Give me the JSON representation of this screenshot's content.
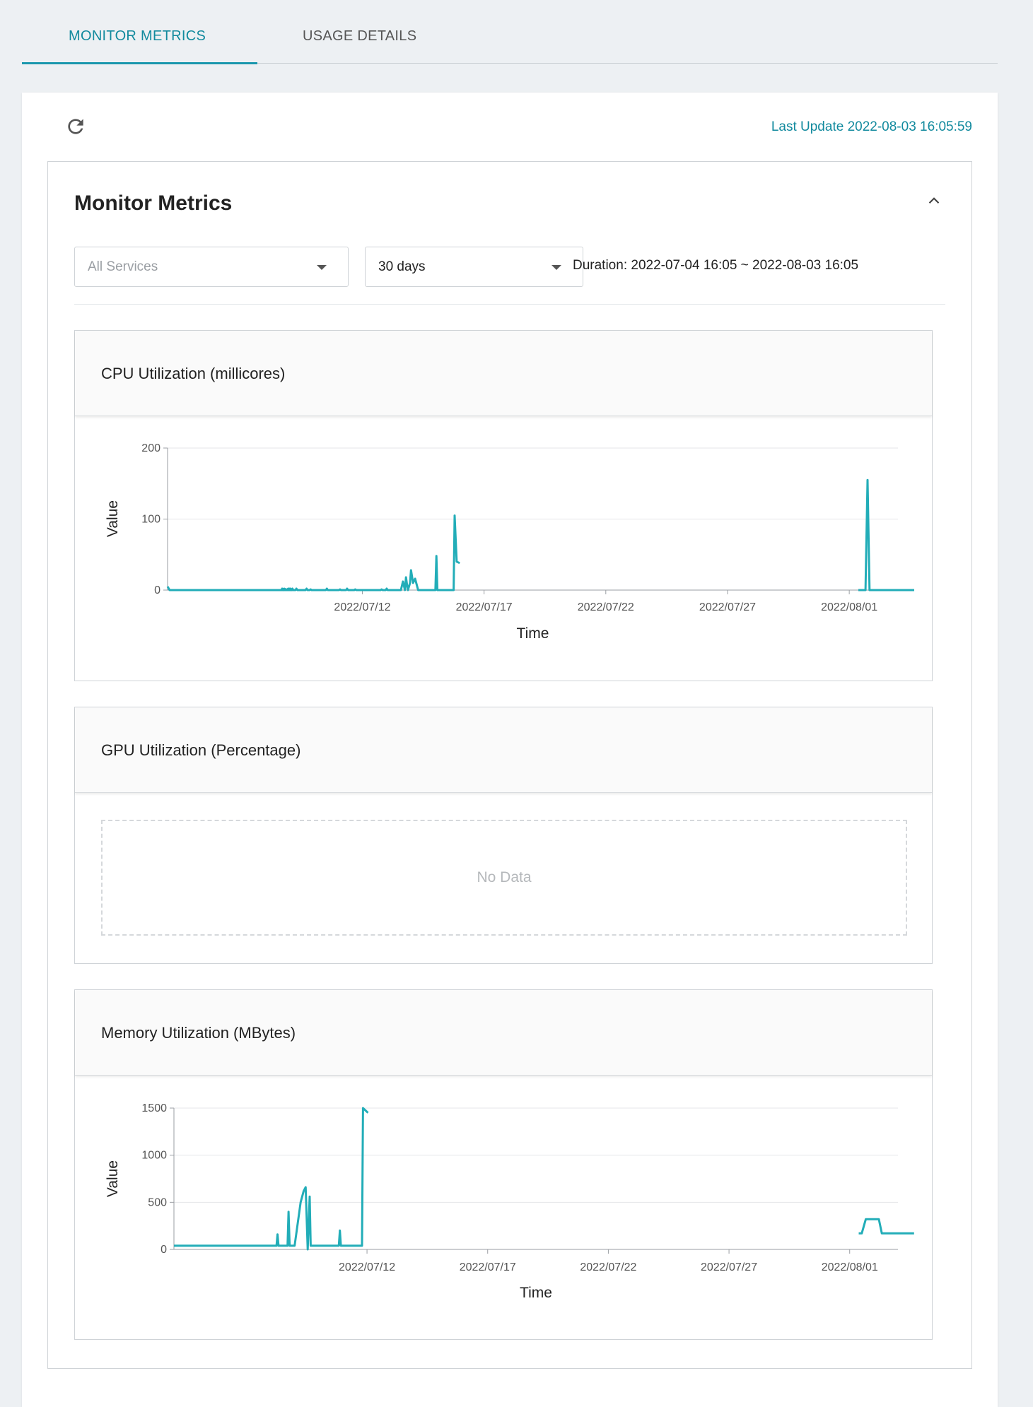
{
  "tabs": [
    {
      "label": "MONITOR METRICS",
      "active": true
    },
    {
      "label": "USAGE DETAILS",
      "active": false
    }
  ],
  "header": {
    "refresh_icon": "refresh-icon",
    "last_update": "Last Update 2022-08-03 16:05:59"
  },
  "panel": {
    "title": "Monitor Metrics",
    "collapse_icon": "chevron-up-icon",
    "service_select": {
      "value": "All Services",
      "placeholder": true
    },
    "range_select": {
      "value": "30 days"
    },
    "duration": "Duration: 2022-07-04 16:05 ~ 2022-08-03 16:05"
  },
  "charts": {
    "cpu": {
      "title": "CPU Utilization (millicores)"
    },
    "gpu": {
      "title": "GPU Utilization (Percentage)",
      "empty_text": "No Data"
    },
    "memory": {
      "title": "Memory Utilization (MBytes)"
    }
  },
  "colors": {
    "accent": "#128a9e",
    "line": "#22adb8"
  },
  "chart_data": [
    {
      "type": "line",
      "id": "cpu",
      "title": "CPU Utilization (millicores)",
      "xlabel": "Time",
      "ylabel": "Value",
      "x_domain": [
        "2022-07-04",
        "2022-08-03"
      ],
      "ylim": [
        0,
        200
      ],
      "y_ticks": [
        0,
        100,
        200
      ],
      "x_ticks": [
        "2022/07/12",
        "2022/07/17",
        "2022/07/22",
        "2022/07/27",
        "2022/08/01"
      ],
      "series": [
        {
          "points": [
            [
              "2022-07-04 00:00",
              5
            ],
            [
              "2022-07-04 02:00",
              0
            ],
            [
              "2022-07-08 16:00",
              0
            ],
            [
              "2022-07-08 18:00",
              1
            ],
            [
              "2022-07-08 20:00",
              0
            ],
            [
              "2022-07-08 22:00",
              0
            ],
            [
              "2022-07-09 00:00",
              2
            ],
            [
              "2022-07-09 02:00",
              0
            ],
            [
              "2022-07-08 22:00",
              0
            ],
            [
              "2022-07-08 23:00",
              2
            ],
            [
              "2022-07-09 00:00",
              0
            ],
            [
              "2022-07-08 19:00",
              0
            ],
            [
              "2022-07-09 01:00",
              1
            ],
            [
              "2022-07-09 03:00",
              0
            ],
            [
              "2022-07-08 21:00",
              0
            ],
            [
              "2022-07-08 23:00",
              2
            ],
            [
              "2022-07-09 01:00",
              0
            ],
            [
              "2022-07-08 16:00",
              0
            ],
            [
              "2022-07-08 17:00",
              2
            ],
            [
              "2022-07-08 18:00",
              0
            ],
            [
              "2022-07-08 18:00",
              0
            ],
            [
              "2022-07-08 19:00",
              1
            ],
            [
              "2022-07-08 20:00",
              0
            ],
            [
              "2022-07-08 16:00",
              0
            ],
            [
              "2022-07-08 19:00",
              2
            ],
            [
              "2022-07-08 22:00",
              0
            ],
            [
              "2022-07-08 16:00",
              0
            ],
            [
              "2022-07-08 20:00",
              1
            ],
            [
              "2022-07-09 00:00",
              0
            ],
            [
              "2022-07-08 23:00",
              0
            ],
            [
              "2022-07-09 00:00",
              1
            ],
            [
              "2022-07-09 01:00",
              0
            ],
            [
              "2022-07-09 00:00",
              0
            ],
            [
              "2022-07-09 01:00",
              2
            ],
            [
              "2022-07-09 02:00",
              0
            ],
            [
              "2022-07-09 02:00",
              0
            ],
            [
              "2022-07-09 03:00",
              2
            ],
            [
              "2022-07-09 04:00",
              0
            ],
            [
              "2022-07-09 06:00",
              0
            ],
            [
              "2022-07-09 07:00",
              2
            ],
            [
              "2022-07-09 08:00",
              0
            ],
            [
              "2022-07-09 16:00",
              0
            ],
            [
              "2022-07-09 17:00",
              2
            ],
            [
              "2022-07-09 18:00",
              0
            ],
            [
              "2022-07-09 20:00",
              0
            ],
            [
              "2022-07-09 21:00",
              1
            ],
            [
              "2022-07-09 22:00",
              0
            ],
            [
              "2022-07-10 12:00",
              0
            ],
            [
              "2022-07-10 13:00",
              2
            ],
            [
              "2022-07-10 14:00",
              0
            ],
            [
              "2022-07-11 01:00",
              0
            ],
            [
              "2022-07-11 02:00",
              1
            ],
            [
              "2022-07-11 03:00",
              0
            ],
            [
              "2022-07-11 08:00",
              0
            ],
            [
              "2022-07-11 09:00",
              2
            ],
            [
              "2022-07-11 10:00",
              0
            ],
            [
              "2022-07-11 16:00",
              0
            ],
            [
              "2022-07-11 17:00",
              1
            ],
            [
              "2022-07-11 18:00",
              0
            ],
            [
              "2022-07-12 18:00",
              0
            ],
            [
              "2022-07-12 19:00",
              1
            ],
            [
              "2022-07-12 20:00",
              0
            ],
            [
              "2022-07-12 23:00",
              0
            ],
            [
              "2022-07-13 00:00",
              2
            ],
            [
              "2022-07-13 01:00",
              0
            ],
            [
              "2022-07-13 14:00",
              0
            ],
            [
              "2022-07-13 16:00",
              12
            ],
            [
              "2022-07-13 18:00",
              0
            ],
            [
              "2022-07-13 19:00",
              18
            ],
            [
              "2022-07-13 20:00",
              8
            ],
            [
              "2022-07-13 21:00",
              0
            ],
            [
              "2022-07-13 23:00",
              10
            ],
            [
              "2022-07-14 00:00",
              28
            ],
            [
              "2022-07-14 02:00",
              10
            ],
            [
              "2022-07-14 04:00",
              16
            ],
            [
              "2022-07-14 07:00",
              0
            ],
            [
              "2022-07-15 00:00",
              0
            ],
            [
              "2022-07-15 01:00",
              48
            ],
            [
              "2022-07-15 02:00",
              0
            ],
            [
              "2022-07-15 18:00",
              0
            ],
            [
              "2022-07-15 19:00",
              105
            ],
            [
              "2022-07-15 21:00",
              40
            ],
            [
              "2022-07-16 00:00",
              38
            ]
          ]
        },
        {
          "points": [
            [
              "2022-08-01 09:00",
              0
            ],
            [
              "2022-08-01 16:00",
              0
            ],
            [
              "2022-08-01 18:00",
              155
            ],
            [
              "2022-08-01 20:00",
              0
            ],
            [
              "2022-08-03 16:00",
              0
            ]
          ]
        }
      ]
    },
    {
      "type": "line",
      "id": "gpu",
      "title": "GPU Utilization (Percentage)",
      "series": []
    },
    {
      "type": "line",
      "id": "memory",
      "title": "Memory Utilization (MBytes)",
      "xlabel": "Time",
      "ylabel": "Value",
      "x_domain": [
        "2022-07-04",
        "2022-08-03"
      ],
      "ylim": [
        0,
        1500
      ],
      "y_ticks": [
        0,
        500,
        1000,
        1500
      ],
      "x_ticks": [
        "2022/07/12",
        "2022/07/17",
        "2022/07/22",
        "2022/07/27",
        "2022/08/01"
      ],
      "series": [
        {
          "points": [
            [
              "2022-07-04 00:00",
              40
            ],
            [
              "2022-07-08 06:00",
              40
            ],
            [
              "2022-07-08 07:00",
              160
            ],
            [
              "2022-07-08 08:00",
              40
            ],
            [
              "2022-07-08 17:00",
              40
            ],
            [
              "2022-07-08 18:00",
              400
            ],
            [
              "2022-07-08 19:00",
              40
            ],
            [
              "2022-07-09 00:00",
              40
            ],
            [
              "2022-07-09 06:00",
              500
            ],
            [
              "2022-07-09 09:00",
              620
            ],
            [
              "2022-07-09 11:00",
              660
            ],
            [
              "2022-07-09 13:00",
              0
            ],
            [
              "2022-07-09 15:00",
              560
            ],
            [
              "2022-07-09 16:00",
              40
            ],
            [
              "2022-07-10 20:00",
              40
            ],
            [
              "2022-07-10 21:00",
              200
            ],
            [
              "2022-07-10 22:00",
              40
            ],
            [
              "2022-07-11 19:00",
              40
            ],
            [
              "2022-07-11 20:00",
              1500
            ],
            [
              "2022-07-12 01:00",
              1450
            ]
          ]
        },
        {
          "points": [
            [
              "2022-08-01 09:00",
              170
            ],
            [
              "2022-08-01 12:00",
              170
            ],
            [
              "2022-08-01 16:00",
              320
            ],
            [
              "2022-08-02 05:00",
              320
            ],
            [
              "2022-08-02 08:00",
              170
            ],
            [
              "2022-08-03 16:00",
              170
            ]
          ]
        }
      ]
    }
  ]
}
